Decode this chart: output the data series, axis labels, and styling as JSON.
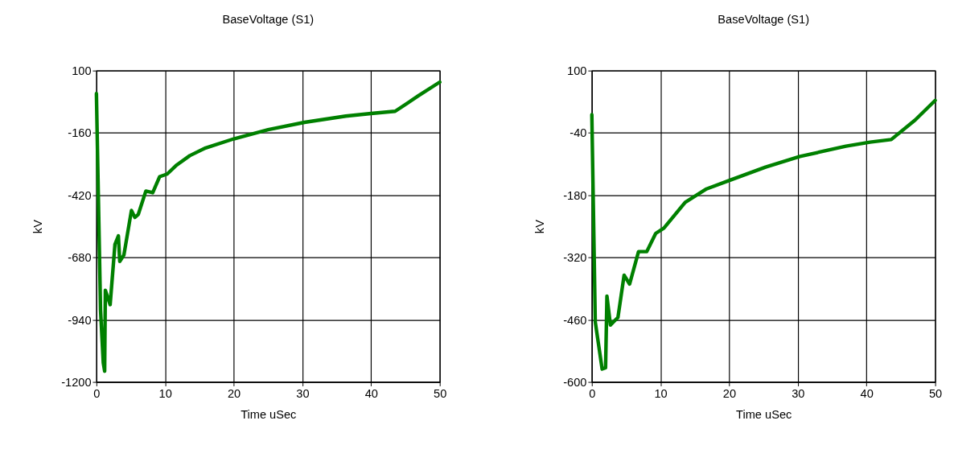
{
  "chart_data": [
    {
      "type": "line",
      "title": "BaseVoltage (S1)",
      "xlabel": "Time uSec",
      "ylabel": "kV",
      "x": [
        0,
        0.2,
        0.6,
        1.0,
        1.2,
        1.3,
        2.0,
        2.7,
        3.2,
        3.4,
        4.0,
        5.1,
        5.6,
        6.1,
        7.2,
        8.2,
        9.2,
        10.3,
        11.7,
        13.6,
        15.9,
        20,
        25,
        30.3,
        36.3,
        40,
        43.5,
        46.9,
        50
      ],
      "series": [
        {
          "color": "#008000",
          "values": [
            4,
            -300,
            -900,
            -1120,
            -1155,
            -817,
            -877,
            -625,
            -590,
            -697,
            -670,
            -484,
            -513,
            -500,
            -403,
            -410,
            -343,
            -332,
            -294,
            -255,
            -223,
            -185,
            -147,
            -116,
            -90,
            -79,
            -70,
            -5,
            52
          ]
        }
      ],
      "xlim": [
        0,
        50
      ],
      "xticks": [
        0,
        10,
        20,
        30,
        40,
        50
      ],
      "ylim": [
        -1200,
        100
      ],
      "yticks": [
        {
          "value": -1200,
          "label": "-1200"
        },
        {
          "value": -940,
          "label": "-940"
        },
        {
          "value": -680,
          "label": "-680"
        },
        {
          "value": -420,
          "label": "-420"
        },
        {
          "value": -160,
          "label": "-160"
        },
        100
      ],
      "grid": true,
      "legend": false,
      "marker": "none",
      "line_style": "solid"
    },
    {
      "type": "line",
      "title": "BaseVoltage (S1)",
      "xlabel": "Time uSec",
      "ylabel": "kV",
      "x": [
        0,
        0.5,
        1.5,
        2.0,
        2.2,
        2.7,
        3.8,
        4.7,
        5.5,
        6.8,
        8.0,
        9.3,
        10.5,
        13.6,
        16.7,
        20.2,
        25.3,
        30.3,
        37,
        40.5,
        43.6,
        47.1,
        50
      ],
      "series": [
        {
          "color": "#008000",
          "values": [
            1,
            -465,
            -571,
            -568,
            -407,
            -472,
            -455,
            -360,
            -380,
            -307,
            -307,
            -266,
            -254,
            -196,
            -166,
            -146,
            -117,
            -93,
            -70,
            -61,
            -55,
            -11,
            33
          ]
        }
      ],
      "xlim": [
        0,
        50
      ],
      "xticks": [
        0,
        10,
        20,
        30,
        40,
        50
      ],
      "ylim": [
        -600,
        100
      ],
      "yticks": [
        {
          "value": -600,
          "label": "-600"
        },
        {
          "value": -460,
          "label": "-460"
        },
        {
          "value": -320,
          "label": "-320"
        },
        {
          "value": -180,
          "label": "-180"
        },
        {
          "value": -40,
          "label": "-40"
        },
        100
      ],
      "grid": true,
      "legend": false,
      "marker": "none",
      "line_style": "solid"
    }
  ]
}
